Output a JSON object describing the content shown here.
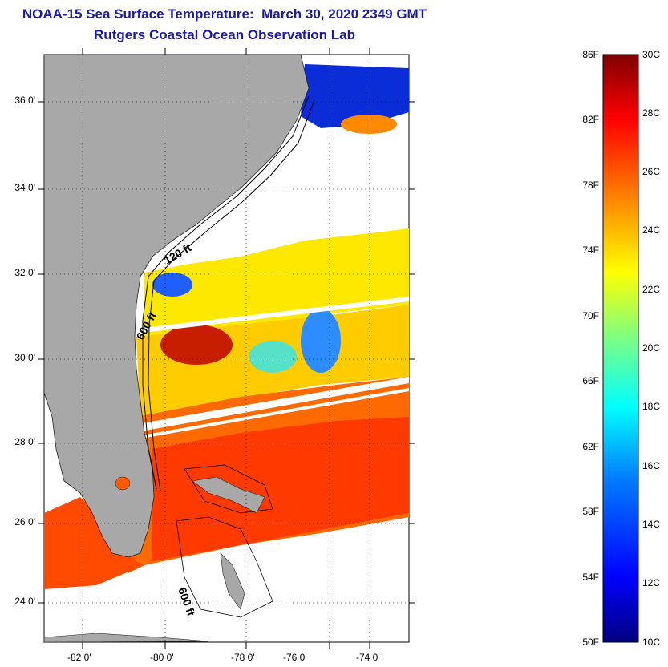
{
  "title": {
    "line1": "NOAA-15 Sea Surface Temperature:  March 30, 2020 2349 GMT",
    "line2": "Rutgers Coastal Ocean Observation Lab"
  },
  "map": {
    "lat_labels": [
      "36 0'",
      "34 0'",
      "32 0'",
      "30 0'",
      "28 0'",
      "26 0'",
      "24 0'"
    ],
    "lon_labels": [
      "-82 0'",
      "-80 0'",
      "-78 0'",
      "-76 0'",
      "-74 0'"
    ],
    "contour_labels": [
      "120 ft",
      "600 ft",
      "600 ft"
    ],
    "colors": {
      "land": "#a8a8a8",
      "no_data": "#ffffff"
    }
  },
  "colorbar": {
    "fahrenheit": [
      "86F",
      "82F",
      "78F",
      "74F",
      "70F",
      "66F",
      "62F",
      "58F",
      "54F",
      "50F"
    ],
    "celsius": [
      "30C",
      "28C",
      "26C",
      "24C",
      "22C",
      "20C",
      "18C",
      "16C",
      "14C",
      "12C",
      "10C"
    ],
    "colors": [
      "#00007f",
      "#0000ff",
      "#007fff",
      "#00ffff",
      "#7fff7f",
      "#ffff00",
      "#ff7f00",
      "#ff0000",
      "#7f0000"
    ]
  }
}
